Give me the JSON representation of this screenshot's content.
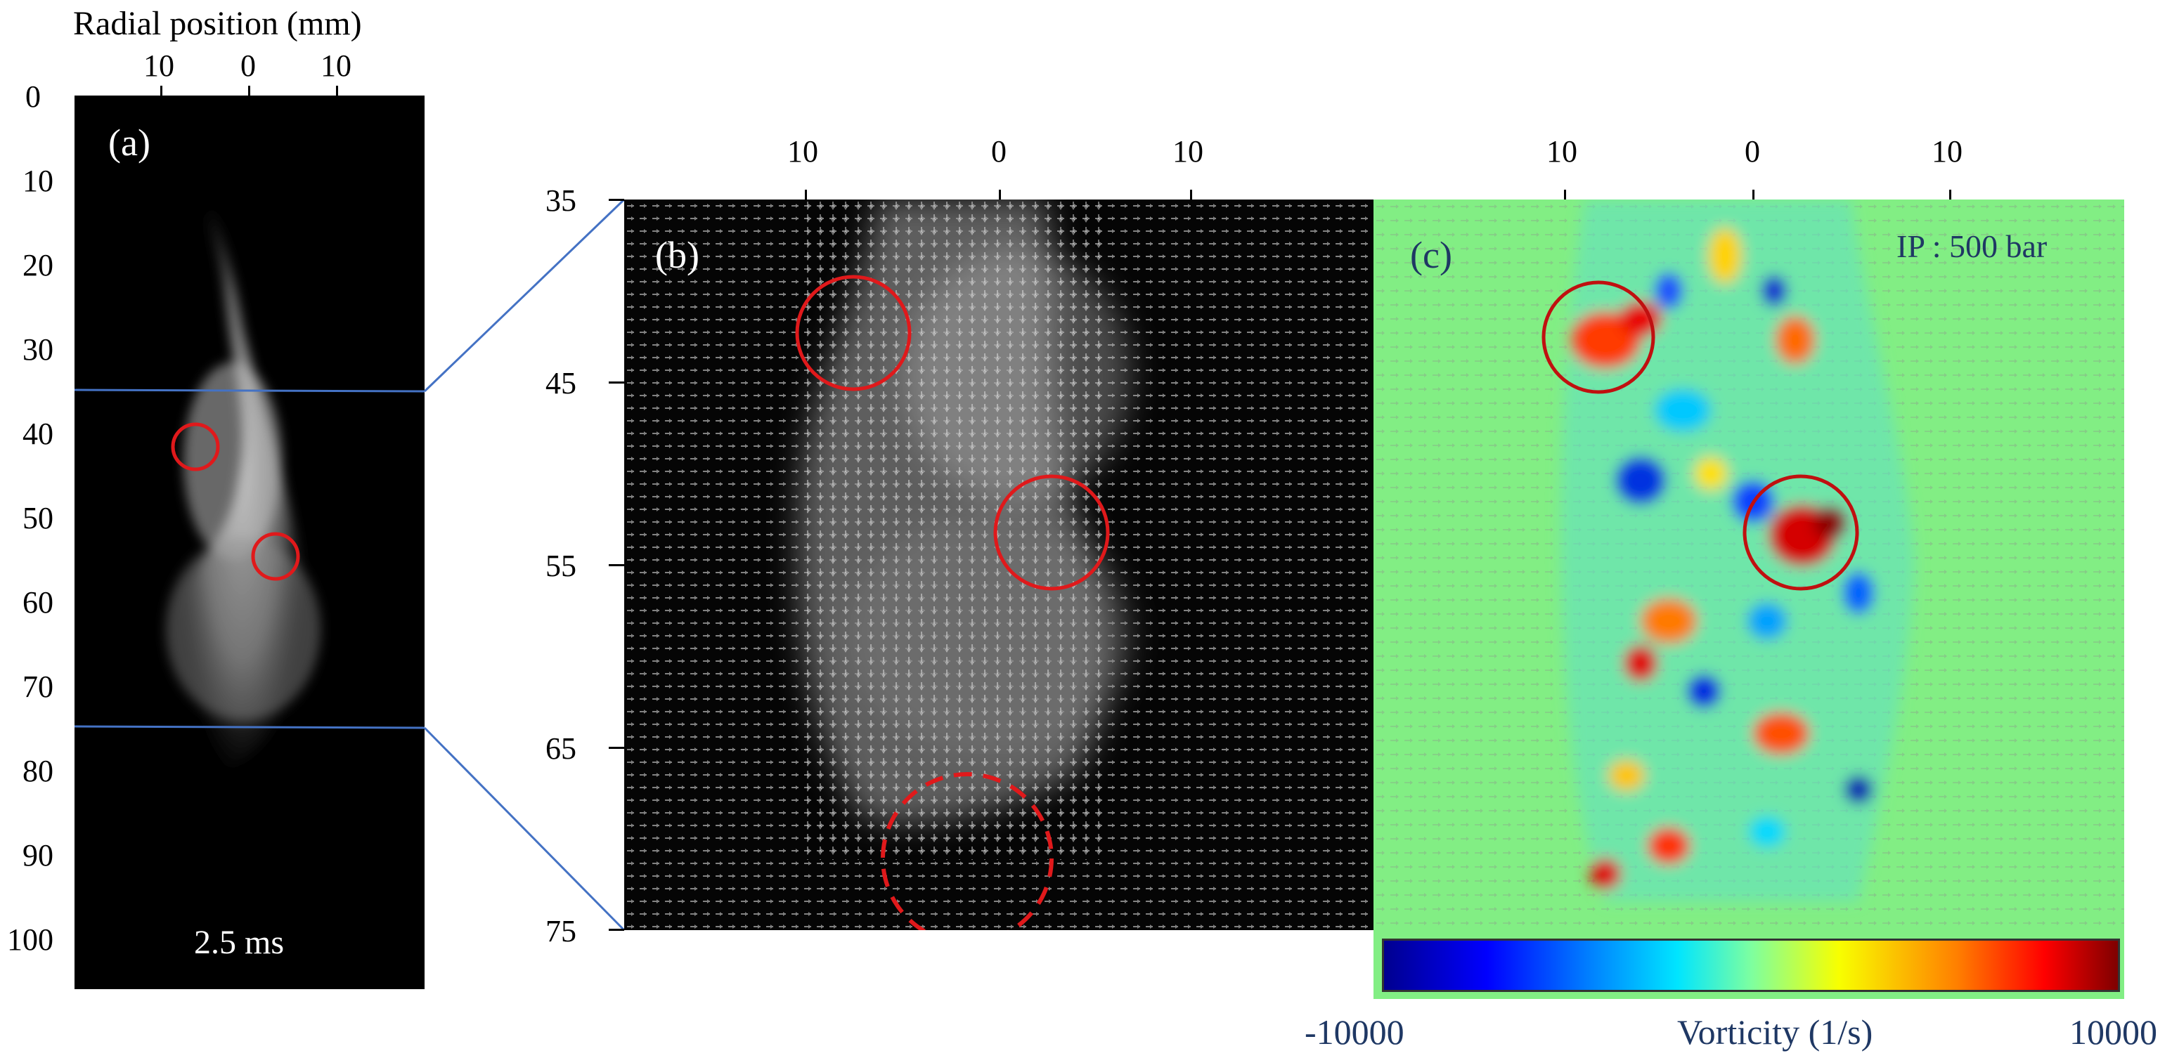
{
  "panel_a": {
    "axis_title": "Radial position (mm)",
    "top_ticks": [
      "10",
      "0",
      "10"
    ],
    "left_ticks": [
      "0",
      "10",
      "20",
      "30",
      "40",
      "50",
      "60",
      "70",
      "80",
      "90",
      "100"
    ],
    "label": "(a)",
    "time_label": "2.5 ms"
  },
  "panel_b": {
    "top_ticks": [
      "10",
      "0",
      "10"
    ],
    "left_ticks": [
      "35",
      "45",
      "55",
      "65",
      "75"
    ],
    "label": "(b)"
  },
  "panel_c": {
    "top_ticks": [
      "10",
      "0",
      "10"
    ],
    "label": "(c)",
    "annotation": "IP : 500 bar",
    "colorbar": {
      "min_label": "-10000",
      "max_label": "10000",
      "title": "Vorticity (1/s)",
      "colors": [
        "#00008f",
        "#0000ff",
        "#0080ff",
        "#00e5ff",
        "#7dffa0",
        "#f8ff00",
        "#ff8000",
        "#ff0000",
        "#7f0000"
      ]
    }
  },
  "colors": {
    "circle": "#e0191b",
    "connector": "#4472c4",
    "label_dark": "#1f3864"
  }
}
